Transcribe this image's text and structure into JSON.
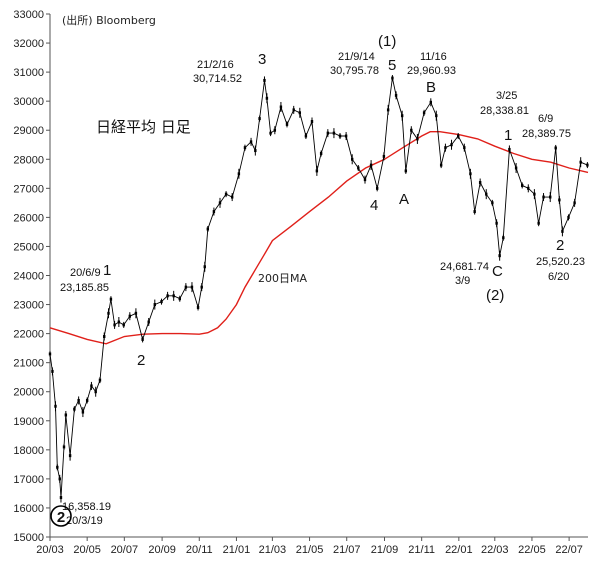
{
  "chart_data": {
    "type": "line",
    "title": "日経平均 日足",
    "source": "(出所)  Bloomberg",
    "xlabel": "",
    "ylabel": "",
    "ylim": [
      15000,
      33000
    ],
    "y_ticks": [
      "15000",
      "16000",
      "17000",
      "18000",
      "19000",
      "20000",
      "21000",
      "22000",
      "23000",
      "24000",
      "25000",
      "26000",
      "27000",
      "28000",
      "29000",
      "30000",
      "31000",
      "32000",
      "33000"
    ],
    "x_ticks": [
      "20/03",
      "20/05",
      "20/07",
      "20/09",
      "20/11",
      "21/01",
      "21/03",
      "21/05",
      "21/07",
      "21/09",
      "21/11",
      "22/01",
      "22/03",
      "22/05",
      "22/07"
    ],
    "x_range": [
      "2020-03-01",
      "2022-08-01"
    ],
    "grid": false,
    "series": [
      {
        "name": "",
        "color": "#000000",
        "x": [
          "2020-03-01",
          "2020-03-05",
          "2020-03-10",
          "2020-03-13",
          "2020-03-17",
          "2020-03-19",
          "2020-03-24",
          "2020-03-27",
          "2020-04-03",
          "2020-04-10",
          "2020-04-17",
          "2020-04-24",
          "2020-05-01",
          "2020-05-08",
          "2020-05-15",
          "2020-05-22",
          "2020-05-29",
          "2020-06-05",
          "2020-06-09",
          "2020-06-15",
          "2020-06-22",
          "2020-06-30",
          "2020-07-10",
          "2020-07-20",
          "2020-07-31",
          "2020-08-10",
          "2020-08-20",
          "2020-08-31",
          "2020-09-10",
          "2020-09-20",
          "2020-09-30",
          "2020-10-10",
          "2020-10-20",
          "2020-10-30",
          "2020-11-05",
          "2020-11-10",
          "2020-11-15",
          "2020-11-25",
          "2020-12-05",
          "2020-12-15",
          "2020-12-25",
          "2021-01-05",
          "2021-01-15",
          "2021-01-25",
          "2021-02-01",
          "2021-02-08",
          "2021-02-16",
          "2021-02-20",
          "2021-02-26",
          "2021-03-05",
          "2021-03-15",
          "2021-03-25",
          "2021-04-05",
          "2021-04-15",
          "2021-04-25",
          "2021-05-05",
          "2021-05-13",
          "2021-05-20",
          "2021-05-31",
          "2021-06-10",
          "2021-06-20",
          "2021-06-30",
          "2021-07-10",
          "2021-07-20",
          "2021-07-31",
          "2021-08-10",
          "2021-08-20",
          "2021-08-31",
          "2021-09-07",
          "2021-09-14",
          "2021-09-20",
          "2021-09-30",
          "2021-10-06",
          "2021-10-15",
          "2021-10-25",
          "2021-11-05",
          "2021-11-16",
          "2021-11-25",
          "2021-12-03",
          "2021-12-10",
          "2021-12-20",
          "2021-12-31",
          "2022-01-10",
          "2022-01-20",
          "2022-01-27",
          "2022-02-05",
          "2022-02-15",
          "2022-02-25",
          "2022-03-04",
          "2022-03-09",
          "2022-03-15",
          "2022-03-25",
          "2022-04-05",
          "2022-04-15",
          "2022-04-25",
          "2022-05-05",
          "2022-05-12",
          "2022-05-20",
          "2022-05-31",
          "2022-06-09",
          "2022-06-15",
          "2022-06-20",
          "2022-06-30",
          "2022-07-10",
          "2022-07-20",
          "2022-07-31"
        ],
        "values": [
          21300,
          20700,
          19500,
          17400,
          17000,
          16358,
          18100,
          19200,
          17800,
          19400,
          19700,
          19300,
          19700,
          20200,
          20000,
          20400,
          21900,
          22700,
          23185,
          22300,
          22400,
          22300,
          22600,
          22700,
          21800,
          22400,
          23000,
          23100,
          23300,
          23300,
          23200,
          23600,
          23600,
          22900,
          23600,
          24300,
          25600,
          26200,
          26500,
          26800,
          26700,
          27500,
          28400,
          28600,
          28300,
          29400,
          30714,
          30100,
          28900,
          29000,
          29800,
          29200,
          29700,
          29600,
          28800,
          29300,
          27600,
          28200,
          28900,
          28900,
          28800,
          28800,
          28000,
          27700,
          27300,
          27800,
          27000,
          28100,
          29700,
          30796,
          30200,
          29500,
          27600,
          29000,
          28700,
          29600,
          29961,
          29500,
          27800,
          28400,
          28500,
          28800,
          28400,
          27500,
          26200,
          27200,
          26800,
          26500,
          25800,
          24682,
          25300,
          28339,
          27700,
          27100,
          27000,
          26800,
          25800,
          26700,
          26700,
          28390,
          26600,
          25520,
          26000,
          26500,
          27900,
          27800
        ]
      },
      {
        "name": "200日MA",
        "color": "#e0201a",
        "x": [
          "2020-03-01",
          "2020-04-01",
          "2020-05-01",
          "2020-06-01",
          "2020-07-01",
          "2020-08-01",
          "2020-09-01",
          "2020-10-01",
          "2020-11-01",
          "2020-11-15",
          "2020-12-01",
          "2020-12-15",
          "2021-01-01",
          "2021-01-15",
          "2021-02-01",
          "2021-02-15",
          "2021-03-01",
          "2021-04-01",
          "2021-05-01",
          "2021-06-01",
          "2021-07-01",
          "2021-08-01",
          "2021-09-01",
          "2021-10-01",
          "2021-11-01",
          "2021-11-15",
          "2021-12-01",
          "2022-01-01",
          "2022-02-01",
          "2022-03-01",
          "2022-04-01",
          "2022-05-01",
          "2022-06-01",
          "2022-07-01",
          "2022-08-01"
        ],
        "values": [
          22200,
          22000,
          21800,
          21650,
          21900,
          21980,
          22000,
          22000,
          21980,
          22030,
          22200,
          22500,
          23000,
          23600,
          24200,
          24700,
          25200,
          25700,
          26200,
          26700,
          27250,
          27700,
          28000,
          28400,
          28800,
          28950,
          28950,
          28850,
          28700,
          28450,
          28200,
          28000,
          27900,
          27700,
          27550
        ]
      }
    ],
    "annotations": [
      {
        "text": "21/2/16",
        "x": "2021-02-16",
        "y": 30714,
        "kind": "label"
      },
      {
        "text": "30,714.52",
        "x": "2021-02-16",
        "y": 30714,
        "kind": "label"
      },
      {
        "text": "3",
        "x": "2021-02-16",
        "y": 30714,
        "kind": "wave"
      },
      {
        "text": "(1)",
        "x": "2021-09-14",
        "y": 30796,
        "kind": "wave"
      },
      {
        "text": "21/9/14",
        "x": "2021-09-14",
        "y": 30796,
        "kind": "label"
      },
      {
        "text": "30,795.78",
        "x": "2021-09-14",
        "y": 30796,
        "kind": "label"
      },
      {
        "text": "5",
        "x": "2021-09-14",
        "y": 30796,
        "kind": "wave"
      },
      {
        "text": "11/16",
        "x": "2021-11-16",
        "y": 29961,
        "kind": "label"
      },
      {
        "text": "29,960.93",
        "x": "2021-11-16",
        "y": 29961,
        "kind": "label"
      },
      {
        "text": "B",
        "x": "2021-11-16",
        "y": 29961,
        "kind": "wave"
      },
      {
        "text": "3/25",
        "x": "2022-03-25",
        "y": 28339,
        "kind": "label"
      },
      {
        "text": "28,338.81",
        "x": "2022-03-25",
        "y": 28339,
        "kind": "label"
      },
      {
        "text": "1",
        "x": "2022-03-25",
        "y": 28339,
        "kind": "wave"
      },
      {
        "text": "6/9",
        "x": "2022-06-09",
        "y": 28390,
        "kind": "label"
      },
      {
        "text": "28,389.75",
        "x": "2022-06-09",
        "y": 28390,
        "kind": "label"
      },
      {
        "text": "A",
        "x": "2021-10-06",
        "y": 27600,
        "kind": "wave"
      },
      {
        "text": "4",
        "x": "2021-08-20",
        "y": 27000,
        "kind": "wave"
      },
      {
        "text": "24,681.74",
        "x": "2022-03-09",
        "y": 24682,
        "kind": "label"
      },
      {
        "text": "3/9",
        "x": "2022-03-09",
        "y": 24682,
        "kind": "label"
      },
      {
        "text": "C",
        "x": "2022-03-09",
        "y": 24682,
        "kind": "wave"
      },
      {
        "text": "(2)",
        "x": "2022-03-09",
        "y": 24682,
        "kind": "wave"
      },
      {
        "text": "2",
        "x": "2022-06-20",
        "y": 25520,
        "kind": "wave"
      },
      {
        "text": "25,520.23",
        "x": "2022-06-20",
        "y": 25520,
        "kind": "label"
      },
      {
        "text": "6/20",
        "x": "2022-06-20",
        "y": 25520,
        "kind": "label"
      },
      {
        "text": "20/6/9",
        "x": "2020-06-09",
        "y": 23185,
        "kind": "label"
      },
      {
        "text": "23,185.85",
        "x": "2020-06-09",
        "y": 23185,
        "kind": "label"
      },
      {
        "text": "1",
        "x": "2020-06-09",
        "y": 23185,
        "kind": "wave"
      },
      {
        "text": "2",
        "x": "2020-08-01",
        "y": 22000,
        "kind": "wave"
      },
      {
        "text": "16,358.19",
        "x": "2020-03-19",
        "y": 16358,
        "kind": "label"
      },
      {
        "text": "20/3/19",
        "x": "2020-03-19",
        "y": 16358,
        "kind": "label"
      },
      {
        "text": "2",
        "x": "2020-03-19",
        "y": 16358,
        "kind": "wave-circled"
      }
    ]
  }
}
